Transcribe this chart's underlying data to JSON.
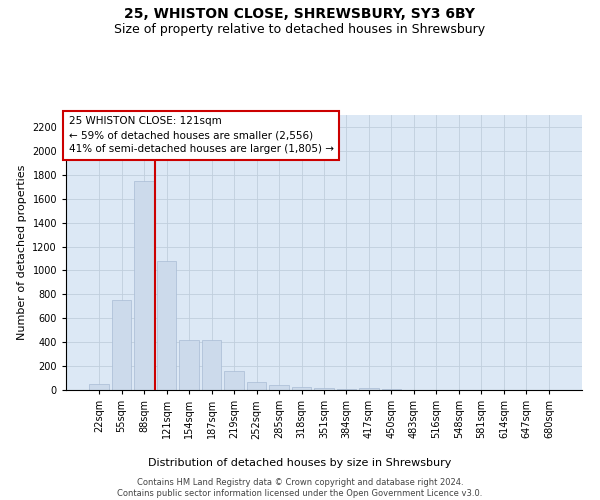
{
  "title1": "25, WHISTON CLOSE, SHREWSBURY, SY3 6BY",
  "title2": "Size of property relative to detached houses in Shrewsbury",
  "xlabel": "Distribution of detached houses by size in Shrewsbury",
  "ylabel": "Number of detached properties",
  "footnote": "Contains HM Land Registry data © Crown copyright and database right 2024.\nContains public sector information licensed under the Open Government Licence v3.0.",
  "categories": [
    "22sqm",
    "55sqm",
    "88sqm",
    "121sqm",
    "154sqm",
    "187sqm",
    "219sqm",
    "252sqm",
    "285sqm",
    "318sqm",
    "351sqm",
    "384sqm",
    "417sqm",
    "450sqm",
    "483sqm",
    "516sqm",
    "548sqm",
    "581sqm",
    "614sqm",
    "647sqm",
    "680sqm"
  ],
  "values": [
    50,
    750,
    1750,
    1075,
    420,
    420,
    155,
    65,
    40,
    25,
    15,
    10,
    20,
    5,
    3,
    2,
    2,
    2,
    2,
    2,
    2
  ],
  "bar_color": "#ccdaeb",
  "bar_edge_color": "#a8bcd4",
  "vline_color": "#cc0000",
  "vline_x": 2.5,
  "annotation_line1": "25 WHISTON CLOSE: 121sqm",
  "annotation_line2": "← 59% of detached houses are smaller (2,556)",
  "annotation_line3": "41% of semi-detached houses are larger (1,805) →",
  "annotation_box_facecolor": "#ffffff",
  "annotation_box_edgecolor": "#cc0000",
  "ylim_max": 2300,
  "yticks": [
    0,
    200,
    400,
    600,
    800,
    1000,
    1200,
    1400,
    1600,
    1800,
    2000,
    2200
  ],
  "grid_color": "#c0cedd",
  "bg_color": "#dce8f5",
  "title1_fontsize": 10,
  "title2_fontsize": 9,
  "xlabel_fontsize": 8,
  "ylabel_fontsize": 8,
  "tick_fontsize": 7,
  "annot_fontsize": 7.5,
  "footnote_fontsize": 6
}
